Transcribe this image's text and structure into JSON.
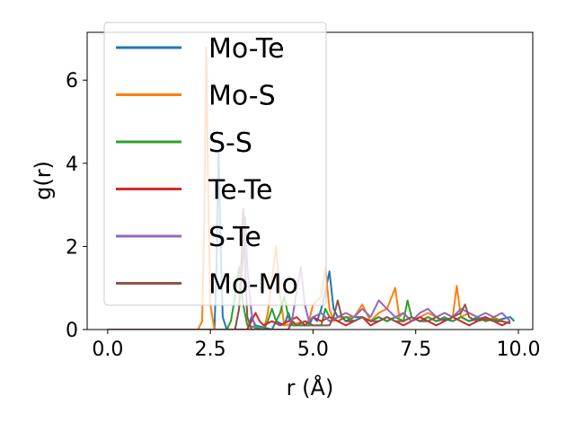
{
  "chart_data": {
    "type": "line",
    "title": "",
    "xlabel": "r (Å)",
    "ylabel": "g(r)",
    "xlim": [
      -0.5,
      10.35
    ],
    "ylim": [
      0,
      7.15
    ],
    "xticks": [
      0.0,
      2.5,
      5.0,
      7.5,
      10.0
    ],
    "xtick_labels": [
      "0.0",
      "2.5",
      "5.0",
      "7.5",
      "10.0"
    ],
    "yticks": [
      0,
      2,
      4,
      6
    ],
    "ytick_labels": [
      "0",
      "2",
      "4",
      "6"
    ],
    "grid": false,
    "legend_position": "upper-left",
    "series": [
      {
        "name": "Mo-Te",
        "color": "#1f77b4",
        "x": [
          0,
          2.5,
          2.6,
          2.65,
          2.7,
          2.75,
          2.8,
          2.9,
          3.4,
          3.5,
          3.6,
          4.0,
          4.1,
          4.3,
          4.4,
          4.5,
          4.9,
          5.0,
          5.1,
          5.2,
          5.3,
          5.4,
          5.5,
          5.6,
          5.7,
          5.8,
          6.0,
          6.2,
          6.4,
          6.6,
          6.8,
          7.0,
          7.2,
          7.4,
          7.6,
          7.8,
          8.0,
          8.2,
          8.4,
          8.6,
          8.8,
          9.0,
          9.2,
          9.4,
          9.6,
          9.8,
          9.9
        ],
        "y": [
          0,
          0,
          0,
          1.5,
          4.3,
          2.0,
          0.3,
          0,
          0,
          0.3,
          0.1,
          0,
          0.2,
          0.1,
          0.4,
          0.1,
          0.1,
          0.3,
          0.2,
          0.5,
          0.9,
          1.4,
          0.5,
          0.3,
          0.3,
          0.2,
          0.3,
          0.3,
          0.2,
          0.3,
          0.2,
          0.3,
          0.2,
          0.3,
          0.2,
          0.3,
          0.2,
          0.25,
          0.2,
          0.3,
          0.2,
          0.25,
          0.3,
          0.2,
          0.25,
          0.3,
          0.2
        ]
      },
      {
        "name": "Mo-S",
        "color": "#ff7f0e",
        "x": [
          0,
          2.2,
          2.3,
          2.35,
          2.4,
          2.45,
          2.5,
          2.6,
          3.8,
          3.9,
          4.0,
          4.1,
          4.2,
          4.3,
          4.9,
          5.0,
          5.2,
          5.3,
          5.4,
          5.5,
          5.6,
          6.0,
          6.2,
          6.4,
          6.6,
          6.8,
          7.0,
          7.1,
          7.2,
          7.4,
          7.6,
          7.8,
          8.0,
          8.2,
          8.4,
          8.5,
          8.6,
          8.8,
          9.0,
          9.2,
          9.4,
          9.6,
          9.8
        ],
        "y": [
          0,
          0,
          0.2,
          2.5,
          6.8,
          3.0,
          0.6,
          0,
          0,
          0.4,
          1.2,
          2.0,
          0.8,
          0.1,
          0.2,
          0.6,
          0.8,
          1.5,
          0.5,
          0.2,
          0.3,
          0.3,
          0.6,
          0.2,
          0.4,
          0.5,
          1.0,
          0.3,
          0.4,
          0.2,
          0.3,
          0.4,
          0.3,
          0.4,
          0.3,
          1.05,
          0.3,
          0.4,
          0.3,
          0.2,
          0.3,
          0.2,
          0.15
        ]
      },
      {
        "name": "S-S",
        "color": "#2ca02c",
        "x": [
          0,
          2.9,
          3.0,
          3.1,
          3.2,
          3.3,
          3.4,
          3.8,
          3.9,
          4.0,
          4.1,
          4.2,
          4.3,
          4.4,
          4.5,
          5.2,
          5.3,
          5.4,
          5.6,
          5.8,
          6.0,
          6.2,
          6.4,
          6.6,
          6.8,
          7.0,
          7.2,
          7.3,
          7.4,
          7.6,
          7.8,
          8.0,
          8.2,
          8.4,
          8.6,
          8.8,
          9.0,
          9.2,
          9.4,
          9.6,
          9.8
        ],
        "y": [
          0,
          0,
          0.2,
          0.8,
          1.5,
          0.6,
          0.1,
          0,
          0.2,
          0.5,
          0.2,
          0.4,
          0.8,
          0.3,
          0.1,
          0.1,
          0.5,
          0.3,
          0.2,
          0.3,
          0.2,
          0.3,
          0.2,
          0.3,
          0.2,
          0.3,
          0.2,
          0.7,
          0.3,
          0.2,
          0.3,
          0.2,
          0.3,
          0.2,
          0.3,
          0.2,
          0.3,
          0.2,
          0.25,
          0.2,
          0.15
        ]
      },
      {
        "name": "Te-Te",
        "color": "#d62728",
        "x": [
          0,
          3.4,
          3.5,
          3.6,
          3.7,
          3.8,
          4.0,
          4.2,
          4.4,
          4.6,
          4.8,
          5.0,
          5.2,
          5.4,
          5.6,
          5.8,
          6.0,
          6.2,
          6.4,
          6.6,
          6.8,
          7.0,
          7.2,
          7.4,
          7.6,
          7.8,
          8.0,
          8.2,
          8.4,
          8.6,
          8.8,
          9.0,
          9.2,
          9.4,
          9.6,
          9.8
        ],
        "y": [
          0,
          0,
          0.2,
          0.4,
          0.2,
          0.1,
          0.2,
          0.1,
          0.2,
          0.3,
          0.1,
          0.3,
          0.2,
          0.3,
          0.2,
          0.1,
          0.2,
          0.3,
          0.1,
          0.2,
          0.3,
          0.2,
          0.1,
          0.2,
          0.3,
          0.2,
          0.1,
          0.2,
          0.3,
          0.2,
          0.1,
          0.2,
          0.3,
          0.2,
          0.1,
          0.2
        ]
      },
      {
        "name": "S-Te",
        "color": "#9467bd",
        "x": [
          0,
          3.1,
          3.2,
          3.3,
          3.35,
          3.4,
          3.5,
          3.6,
          4.4,
          4.5,
          4.6,
          4.7,
          4.8,
          4.9,
          5.0,
          5.2,
          5.4,
          5.6,
          5.8,
          6.0,
          6.2,
          6.4,
          6.6,
          6.8,
          7.0,
          7.2,
          7.4,
          7.6,
          7.8,
          8.0,
          8.2,
          8.4,
          8.6,
          8.8,
          9.0,
          9.2,
          9.4,
          9.6,
          9.8
        ],
        "y": [
          0,
          0,
          0.5,
          1.8,
          2.7,
          1.5,
          0.4,
          0,
          0,
          0.3,
          0.9,
          1.5,
          0.6,
          0.2,
          0.3,
          0.4,
          0.2,
          0.3,
          0.4,
          0.3,
          0.5,
          0.3,
          0.7,
          0.5,
          0.3,
          0.4,
          0.2,
          0.4,
          0.5,
          0.3,
          0.4,
          0.3,
          0.5,
          0.4,
          0.3,
          0.4,
          0.3,
          0.4,
          0.2
        ]
      },
      {
        "name": "Mo-Mo",
        "color": "#8c564b",
        "x": [
          0,
          3.1,
          3.2,
          3.25,
          3.3,
          3.35,
          3.4,
          3.5,
          4.4,
          4.5,
          4.6,
          4.8,
          5.0,
          5.4,
          5.5,
          5.6,
          5.7,
          5.8,
          6.0,
          6.2,
          6.4,
          6.6,
          6.8,
          7.0,
          7.2,
          7.4,
          7.6,
          7.8,
          8.0,
          8.2,
          8.4,
          8.6,
          8.7,
          8.8,
          9.0,
          9.2,
          9.4,
          9.6,
          9.8
        ],
        "y": [
          0,
          0,
          0.5,
          1.5,
          2.9,
          1.4,
          0.3,
          0,
          0,
          0.2,
          0.1,
          0.2,
          0.1,
          0.1,
          0.3,
          0.7,
          0.3,
          0.2,
          0.2,
          0.3,
          0.2,
          0.2,
          0.3,
          0.2,
          0.2,
          0.3,
          0.2,
          0.2,
          0.3,
          0.2,
          0.3,
          0.4,
          0.6,
          0.3,
          0.2,
          0.25,
          0.2,
          0.2,
          0.15
        ]
      }
    ]
  }
}
